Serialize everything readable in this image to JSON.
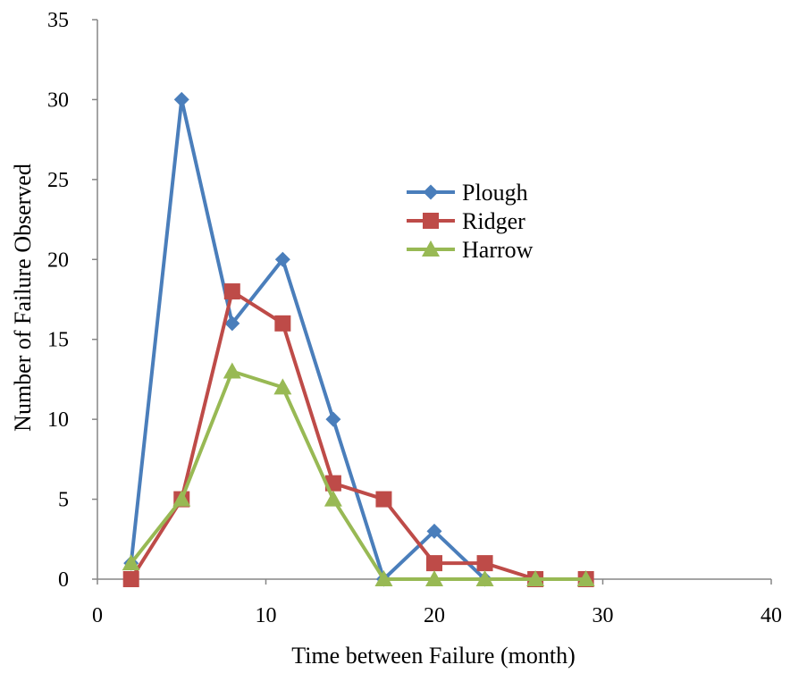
{
  "chart_data": {
    "type": "line",
    "title": "",
    "xlabel": "Time between Failure (month)",
    "ylabel": "Number of Failure Observed",
    "xlim": [
      0,
      40
    ],
    "ylim": [
      0,
      35
    ],
    "xticks": [
      0,
      10,
      20,
      30,
      40
    ],
    "yticks": [
      0,
      5,
      10,
      15,
      20,
      25,
      30,
      35
    ],
    "grid": false,
    "legend_position": "center-right",
    "x": [
      2,
      5,
      8,
      11,
      14,
      17,
      20,
      23,
      26,
      29
    ],
    "series": [
      {
        "name": "Plough",
        "color": "#4a7ebb",
        "marker": "diamond",
        "values": [
          1,
          30,
          16,
          20,
          10,
          0,
          3,
          0,
          0,
          0
        ]
      },
      {
        "name": "Ridger",
        "color": "#be4b48",
        "marker": "square",
        "values": [
          0,
          5,
          18,
          16,
          6,
          5,
          1,
          1,
          0,
          0
        ]
      },
      {
        "name": "Harrow",
        "color": "#98b954",
        "marker": "triangle",
        "values": [
          1,
          5,
          13,
          12,
          5,
          0,
          0,
          0,
          0,
          0
        ]
      }
    ]
  }
}
